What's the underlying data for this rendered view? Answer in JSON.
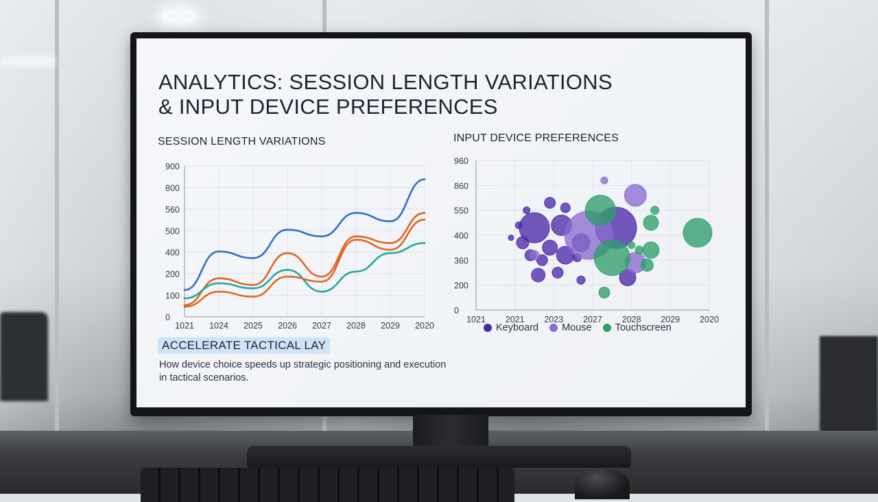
{
  "dashboard": {
    "title_line1": "ANALYTICS: SESSION LENGTH VARIATIONS",
    "title_line2": "& INPUT DEVICE PREFERENCES",
    "left_section_title": "SESSION LENGTH VARIATIONS",
    "right_section_title": "INPUT DEVICE PREFERENCES",
    "highlight_heading": "ACCELERATE TACTICAL LAY",
    "description": "How device choice speeds up strategic positioning and execution in tactical scenarios."
  },
  "colors": {
    "blue": "#2f6fc7",
    "orange": "#e0671f",
    "teal": "#22a99c",
    "keyboard": "#4b2aa8",
    "mouse": "#8a6bd0",
    "touchscreen": "#2f9e6b"
  },
  "chart_data": [
    {
      "type": "line",
      "title": "SESSION LENGTH VARIATIONS",
      "x_tick_labels": [
        "1021",
        "1024",
        "2025",
        "2026",
        "2027",
        "2028",
        "2029",
        "2020"
      ],
      "y_tick_labels": [
        "900",
        "800",
        "560",
        "500",
        "400",
        "200",
        "100",
        "0"
      ],
      "ylim": [
        0,
        900
      ],
      "grid": true,
      "series": [
        {
          "color": "blue",
          "values": [
            160,
            390,
            350,
            520,
            480,
            620,
            570,
            820
          ]
        },
        {
          "color": "orange",
          "values": [
            70,
            230,
            190,
            380,
            240,
            480,
            440,
            620
          ]
        },
        {
          "color": "teal",
          "values": [
            110,
            200,
            170,
            280,
            150,
            270,
            380,
            440
          ]
        },
        {
          "color": "orange",
          "values": [
            60,
            150,
            120,
            240,
            210,
            460,
            400,
            580
          ]
        }
      ]
    },
    {
      "type": "scatter",
      "title": "INPUT DEVICE PREFERENCES",
      "x_tick_labels": [
        "1021",
        "2021",
        "2023",
        "2027",
        "2028",
        "2029",
        "2020"
      ],
      "y_tick_labels": [
        "960",
        "860",
        "550",
        "400",
        "360",
        "200",
        "0"
      ],
      "grid": true,
      "legend": [
        "Keyboard",
        "Mouse",
        "Touchscreen"
      ],
      "legend_position": "bottom",
      "points": [
        {
          "series": "Keyboard",
          "x": 1.5,
          "y": 3.3,
          "size": 22
        },
        {
          "series": "Keyboard",
          "x": 2.2,
          "y": 3.4,
          "size": 15
        },
        {
          "series": "Keyboard",
          "x": 1.9,
          "y": 2.5,
          "size": 11
        },
        {
          "series": "Keyboard",
          "x": 2.3,
          "y": 2.2,
          "size": 13
        },
        {
          "series": "Keyboard",
          "x": 1.2,
          "y": 2.7,
          "size": 9
        },
        {
          "series": "Keyboard",
          "x": 1.4,
          "y": 2.2,
          "size": 8
        },
        {
          "series": "Keyboard",
          "x": 1.7,
          "y": 2.0,
          "size": 8
        },
        {
          "series": "Keyboard",
          "x": 1.6,
          "y": 1.4,
          "size": 10
        },
        {
          "series": "Keyboard",
          "x": 2.1,
          "y": 1.5,
          "size": 8
        },
        {
          "series": "Keyboard",
          "x": 1.9,
          "y": 4.3,
          "size": 8
        },
        {
          "series": "Keyboard",
          "x": 2.3,
          "y": 4.1,
          "size": 7
        },
        {
          "series": "Keyboard",
          "x": 2.7,
          "y": 1.2,
          "size": 6
        },
        {
          "series": "Keyboard",
          "x": 1.1,
          "y": 3.4,
          "size": 5
        },
        {
          "series": "Keyboard",
          "x": 0.9,
          "y": 2.9,
          "size": 4
        },
        {
          "series": "Keyboard",
          "x": 1.3,
          "y": 4.0,
          "size": 5
        },
        {
          "series": "Keyboard",
          "x": 2.6,
          "y": 2.1,
          "size": 6
        },
        {
          "series": "Keyboard",
          "x": 3.6,
          "y": 3.3,
          "size": 30
        },
        {
          "series": "Keyboard",
          "x": 3.9,
          "y": 1.3,
          "size": 12
        },
        {
          "series": "Keyboard",
          "x": 2.7,
          "y": 2.7,
          "size": 13
        },
        {
          "series": "Mouse",
          "x": 2.9,
          "y": 3.0,
          "size": 35
        },
        {
          "series": "Mouse",
          "x": 4.1,
          "y": 4.6,
          "size": 16
        },
        {
          "series": "Mouse",
          "x": 4.1,
          "y": 1.9,
          "size": 15
        },
        {
          "series": "Mouse",
          "x": 3.3,
          "y": 5.2,
          "size": 5
        },
        {
          "series": "Mouse",
          "x": 1.5,
          "y": 2.2,
          "size": 7
        },
        {
          "series": "Mouse",
          "x": 3.2,
          "y": 3.5,
          "size": 9
        },
        {
          "series": "Touchscreen",
          "x": 3.2,
          "y": 4.0,
          "size": 22
        },
        {
          "series": "Touchscreen",
          "x": 3.5,
          "y": 2.1,
          "size": 26
        },
        {
          "series": "Touchscreen",
          "x": 5.7,
          "y": 3.1,
          "size": 21
        },
        {
          "series": "Touchscreen",
          "x": 4.5,
          "y": 3.5,
          "size": 11
        },
        {
          "series": "Touchscreen",
          "x": 4.5,
          "y": 2.4,
          "size": 12
        },
        {
          "series": "Touchscreen",
          "x": 4.4,
          "y": 1.8,
          "size": 9
        },
        {
          "series": "Touchscreen",
          "x": 3.3,
          "y": 0.7,
          "size": 8
        },
        {
          "series": "Touchscreen",
          "x": 4.2,
          "y": 2.4,
          "size": 6
        },
        {
          "series": "Touchscreen",
          "x": 4.0,
          "y": 2.6,
          "size": 5
        },
        {
          "series": "Touchscreen",
          "x": 4.6,
          "y": 4.0,
          "size": 6
        }
      ]
    }
  ]
}
